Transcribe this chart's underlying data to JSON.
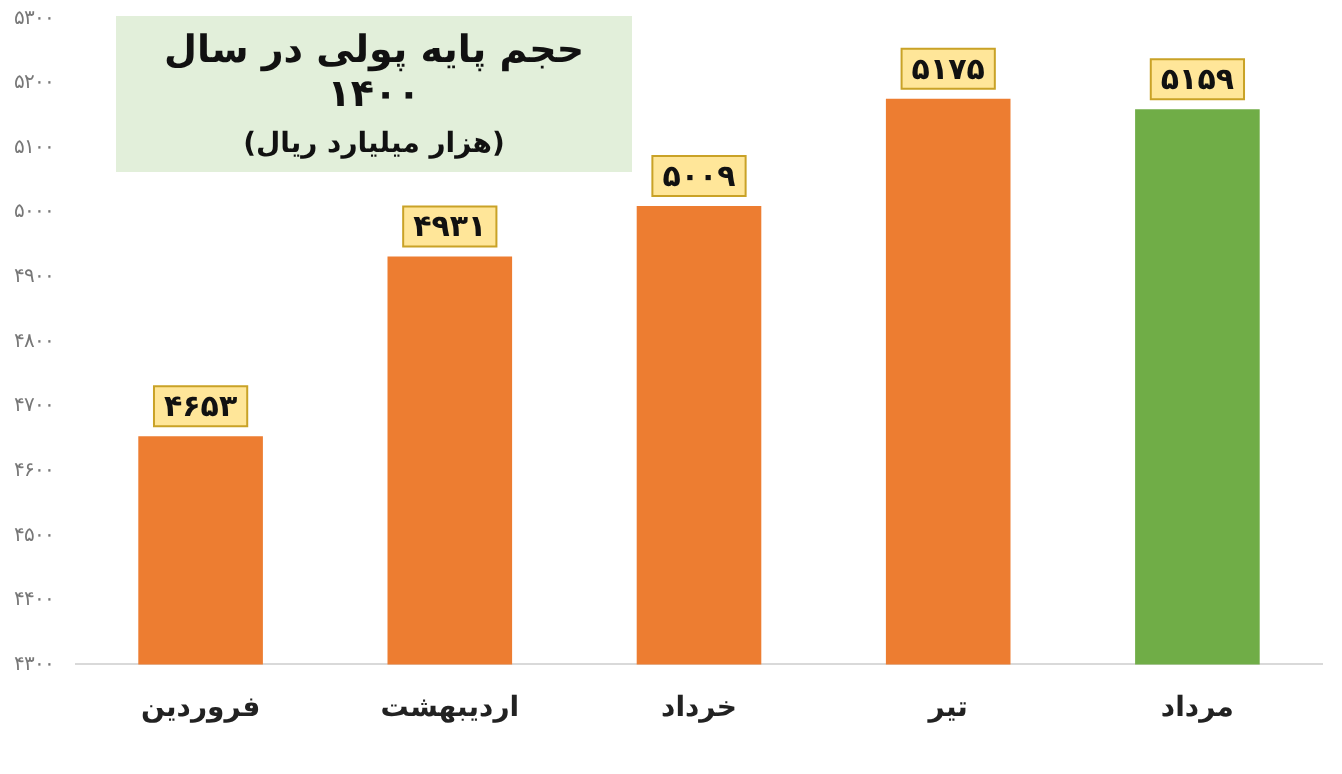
{
  "chart_data": {
    "type": "bar",
    "title": "حجم پایه پولی در سال ۱۴۰۰",
    "subtitle": "(هزار میلیارد ریال)",
    "categories": [
      "فروردین",
      "اردیبهشت",
      "خرداد",
      "تیر",
      "مرداد"
    ],
    "values": [
      4653,
      4931,
      5009,
      5175,
      5159
    ],
    "colors": [
      "#ed7d31",
      "#ed7d31",
      "#ed7d31",
      "#ed7d31",
      "#70ad47"
    ],
    "value_labels": [
      "۴۶۵۳",
      "۴۹۳۱",
      "۵۰۰۹",
      "۵۱۷۵",
      "۵۱۵۹"
    ],
    "ylim": [
      4300,
      5300
    ],
    "yticks": [
      {
        "value": 4300,
        "label": "۴۳۰۰"
      },
      {
        "value": 4400,
        "label": "۴۴۰۰"
      },
      {
        "value": 4500,
        "label": "۴۵۰۰"
      },
      {
        "value": 4600,
        "label": "۴۶۰۰"
      },
      {
        "value": 4700,
        "label": "۴۷۰۰"
      },
      {
        "value": 4800,
        "label": "۴۸۰۰"
      },
      {
        "value": 4900,
        "label": "۴۹۰۰"
      },
      {
        "value": 5000,
        "label": "۵۰۰۰"
      },
      {
        "value": 5100,
        "label": "۵۱۰۰"
      },
      {
        "value": 5200,
        "label": "۵۲۰۰"
      },
      {
        "value": 5300,
        "label": "۵۳۰۰"
      }
    ],
    "grid": false,
    "legend": false
  }
}
